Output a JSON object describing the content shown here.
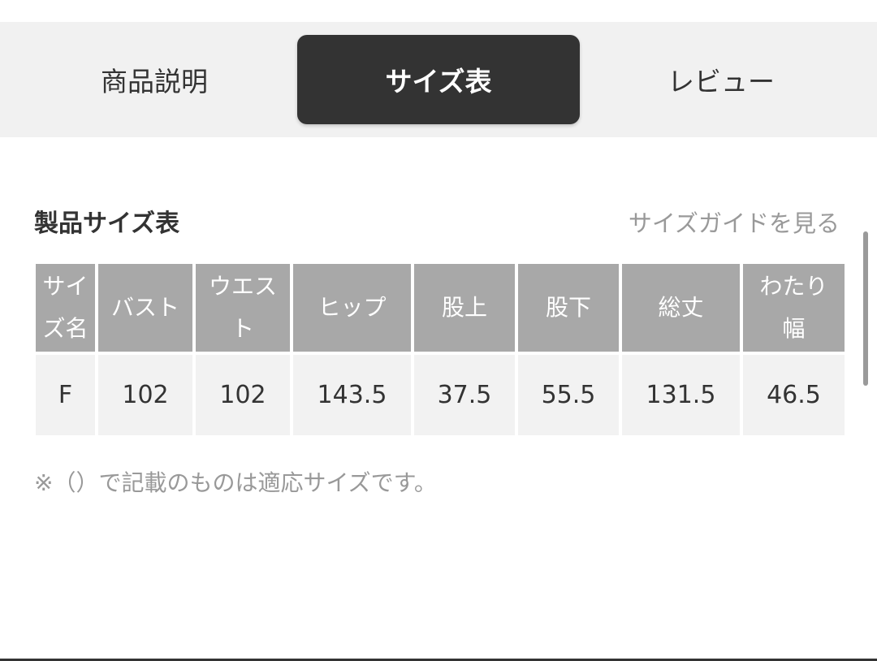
{
  "tabs": [
    {
      "label": "商品説明",
      "active": false
    },
    {
      "label": "サイズ表",
      "active": true
    },
    {
      "label": "レビュー",
      "active": false
    }
  ],
  "section": {
    "title": "製品サイズ表",
    "guide_link": "サイズガイドを見る"
  },
  "table": {
    "headers": [
      "サイズ名",
      "バスト",
      "ウエスト",
      "ヒップ",
      "股上",
      "股下",
      "総丈",
      "わたり幅"
    ],
    "rows": [
      [
        "F",
        "102",
        "102",
        "143.5",
        "37.5",
        "55.5",
        "131.5",
        "46.5"
      ]
    ]
  },
  "note": "※（）で記載のものは適応サイズです。",
  "colors": {
    "active_tab": "#333333",
    "header_bg": "#a8a8a8",
    "cell_bg": "#f2f2f2",
    "tabbar_bg": "#f1f1f1"
  }
}
